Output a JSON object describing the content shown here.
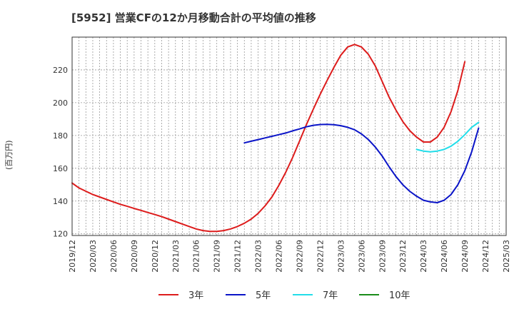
{
  "chart_data": {
    "type": "line",
    "title": "[5952]  営業CFの12か月移動合計の平均値の推移",
    "ylabel": "(百万円)",
    "xlabel": "",
    "ylim": [
      119,
      240
    ],
    "yticks": [
      120,
      140,
      160,
      180,
      200,
      220
    ],
    "x_ticks": [
      "2019/12",
      "2020/03",
      "2020/06",
      "2020/09",
      "2020/12",
      "2021/03",
      "2021/06",
      "2021/09",
      "2021/12",
      "2022/03",
      "2022/06",
      "2022/09",
      "2022/12",
      "2023/03",
      "2023/06",
      "2023/09",
      "2023/12",
      "2024/03",
      "2024/06",
      "2024/09",
      "2024/12",
      "2025/03"
    ],
    "x_range": [
      "2019/12",
      "2025/03"
    ],
    "grid": true,
    "legend_position": "bottom",
    "series": [
      {
        "name": "3年",
        "color": "#dd1c1c",
        "points": [
          [
            "2019/12",
            151
          ],
          [
            "2020/01",
            148
          ],
          [
            "2020/02",
            146
          ],
          [
            "2020/03",
            144
          ],
          [
            "2020/04",
            142.5
          ],
          [
            "2020/05",
            141
          ],
          [
            "2020/06",
            139.5
          ],
          [
            "2020/07",
            138
          ],
          [
            "2020/08",
            136.8
          ],
          [
            "2020/09",
            135.5
          ],
          [
            "2020/10",
            134.3
          ],
          [
            "2020/11",
            133
          ],
          [
            "2020/12",
            131.8
          ],
          [
            "2021/01",
            130.5
          ],
          [
            "2021/02",
            129
          ],
          [
            "2021/03",
            127.5
          ],
          [
            "2021/04",
            126
          ],
          [
            "2021/05",
            124.5
          ],
          [
            "2021/06",
            123
          ],
          [
            "2021/07",
            122
          ],
          [
            "2021/08",
            121.5
          ],
          [
            "2021/09",
            121.5
          ],
          [
            "2021/10",
            122
          ],
          [
            "2021/11",
            123
          ],
          [
            "2021/12",
            124.5
          ],
          [
            "2022/01",
            126.5
          ],
          [
            "2022/02",
            129
          ],
          [
            "2022/03",
            132.5
          ],
          [
            "2022/04",
            137
          ],
          [
            "2022/05",
            142.5
          ],
          [
            "2022/06",
            149.5
          ],
          [
            "2022/07",
            157.5
          ],
          [
            "2022/08",
            166.5
          ],
          [
            "2022/09",
            176.5
          ],
          [
            "2022/10",
            186.5
          ],
          [
            "2022/11",
            196
          ],
          [
            "2022/12",
            205
          ],
          [
            "2023/01",
            213.5
          ],
          [
            "2023/02",
            221.5
          ],
          [
            "2023/03",
            229
          ],
          [
            "2023/04",
            234
          ],
          [
            "2023/05",
            235.5
          ],
          [
            "2023/06",
            234
          ],
          [
            "2023/07",
            229.5
          ],
          [
            "2023/08",
            222.5
          ],
          [
            "2023/09",
            213
          ],
          [
            "2023/10",
            203.5
          ],
          [
            "2023/11",
            195.5
          ],
          [
            "2023/12",
            188.5
          ],
          [
            "2024/01",
            183
          ],
          [
            "2024/02",
            179
          ],
          [
            "2024/03",
            176
          ],
          [
            "2024/04",
            176
          ],
          [
            "2024/05",
            179
          ],
          [
            "2024/06",
            185
          ],
          [
            "2024/07",
            194.5
          ],
          [
            "2024/08",
            207.5
          ],
          [
            "2024/09",
            225
          ]
        ]
      },
      {
        "name": "5年",
        "color": "#0a14c8",
        "points": [
          [
            "2022/01",
            175.5
          ],
          [
            "2022/02",
            176.5
          ],
          [
            "2022/03",
            177.5
          ],
          [
            "2022/04",
            178.5
          ],
          [
            "2022/05",
            179.5
          ],
          [
            "2022/06",
            180.5
          ],
          [
            "2022/07",
            181.5
          ],
          [
            "2022/08",
            182.8
          ],
          [
            "2022/09",
            184
          ],
          [
            "2022/10",
            185.3
          ],
          [
            "2022/11",
            186.2
          ],
          [
            "2022/12",
            186.7
          ],
          [
            "2023/01",
            186.8
          ],
          [
            "2023/02",
            186.6
          ],
          [
            "2023/03",
            186
          ],
          [
            "2023/04",
            185
          ],
          [
            "2023/05",
            183.5
          ],
          [
            "2023/06",
            181
          ],
          [
            "2023/07",
            177.5
          ],
          [
            "2023/08",
            173
          ],
          [
            "2023/09",
            167.5
          ],
          [
            "2023/10",
            161
          ],
          [
            "2023/11",
            155
          ],
          [
            "2023/12",
            150
          ],
          [
            "2024/01",
            146
          ],
          [
            "2024/02",
            143
          ],
          [
            "2024/03",
            140.5
          ],
          [
            "2024/04",
            139.5
          ],
          [
            "2024/05",
            139
          ],
          [
            "2024/06",
            140.5
          ],
          [
            "2024/07",
            144
          ],
          [
            "2024/08",
            150
          ],
          [
            "2024/09",
            158.5
          ],
          [
            "2024/10",
            170
          ],
          [
            "2024/11",
            184.5
          ]
        ]
      },
      {
        "name": "7年",
        "color": "#22dde9",
        "points": [
          [
            "2024/02",
            171.5
          ],
          [
            "2024/03",
            170.5
          ],
          [
            "2024/04",
            170
          ],
          [
            "2024/05",
            170.5
          ],
          [
            "2024/06",
            171.5
          ],
          [
            "2024/07",
            173.5
          ],
          [
            "2024/08",
            176.5
          ],
          [
            "2024/09",
            180.5
          ],
          [
            "2024/10",
            185
          ],
          [
            "2024/11",
            188
          ]
        ]
      },
      {
        "name": "10年",
        "color": "#1a8c1a",
        "points": []
      }
    ]
  }
}
